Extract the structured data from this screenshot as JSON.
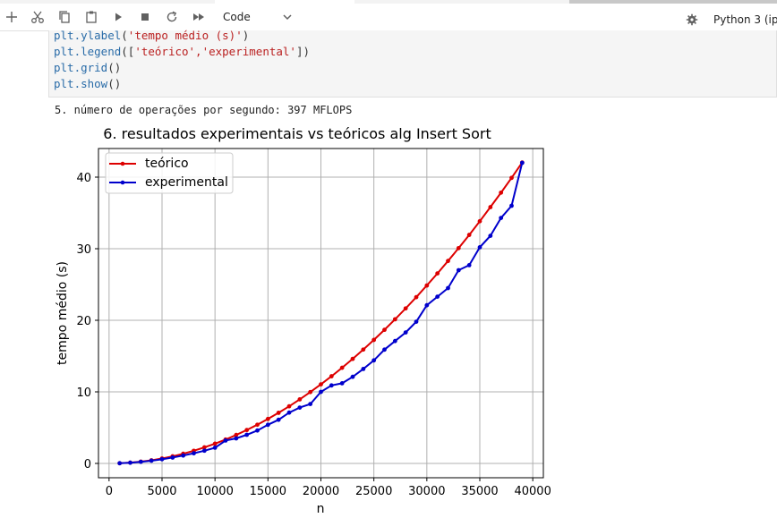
{
  "toolbar": {
    "icons": [
      "add-icon",
      "cut-icon",
      "copy-icon",
      "paste-icon",
      "run-icon",
      "stop-icon",
      "restart-icon",
      "fast-forward-icon"
    ],
    "cell_type": "Code",
    "kernel": "Python 3 (ip"
  },
  "code_cell": {
    "lines": [
      {
        "fn": "plt.ylabel",
        "open": "(",
        "str": "'tempo médio (s)'",
        "close": ")"
      },
      {
        "fn": "plt.legend",
        "open": "([",
        "str": "'teórico','experimental'",
        "close": "])"
      },
      {
        "fn": "plt.grid",
        "open": "()",
        "str": "",
        "close": ""
      },
      {
        "fn": "plt.show",
        "open": "()",
        "str": "",
        "close": ""
      }
    ]
  },
  "output": {
    "text": "5. número de operações por segundo: 397 MFLOPS"
  },
  "colors": {
    "teorico": "#dd0000",
    "experimental": "#0000cc",
    "grid": "#b0b0b0"
  },
  "chart_data": {
    "type": "line",
    "title": "6. resultados experimentais vs teóricos alg Insert Sort",
    "xlabel": "n",
    "ylabel": "tempo médio (s)",
    "xlim": [
      -1000,
      41000
    ],
    "ylim": [
      -2,
      44
    ],
    "xticks": [
      0,
      5000,
      10000,
      15000,
      20000,
      25000,
      30000,
      35000,
      40000
    ],
    "yticks": [
      0,
      10,
      20,
      30,
      40
    ],
    "grid": true,
    "legend_position": "top-left",
    "x": [
      1000,
      2000,
      3000,
      4000,
      5000,
      6000,
      7000,
      8000,
      9000,
      10000,
      11000,
      12000,
      13000,
      14000,
      15000,
      16000,
      17000,
      18000,
      19000,
      20000,
      21000,
      22000,
      23000,
      24000,
      25000,
      26000,
      27000,
      28000,
      29000,
      30000,
      31000,
      32000,
      33000,
      34000,
      35000,
      36000,
      37000,
      38000,
      39000
    ],
    "series": [
      {
        "name": "teórico",
        "color": "#dd0000",
        "values": [
          0.03,
          0.11,
          0.25,
          0.44,
          0.69,
          0.99,
          1.35,
          1.77,
          2.24,
          2.76,
          3.34,
          3.98,
          4.67,
          5.41,
          6.21,
          7.07,
          7.98,
          8.95,
          9.97,
          11.05,
          12.18,
          13.37,
          14.61,
          15.91,
          17.26,
          18.67,
          20.14,
          21.66,
          23.23,
          24.86,
          26.55,
          28.29,
          30.08,
          31.93,
          33.84,
          35.81,
          37.83,
          39.9,
          42.04
        ]
      },
      {
        "name": "experimental",
        "color": "#0000cc",
        "values": [
          0.03,
          0.1,
          0.22,
          0.38,
          0.58,
          0.82,
          1.1,
          1.42,
          1.78,
          2.2,
          3.2,
          3.5,
          4.0,
          4.6,
          5.4,
          6.1,
          7.1,
          7.8,
          8.3,
          10.0,
          10.9,
          11.2,
          12.1,
          13.2,
          14.4,
          15.9,
          17.1,
          18.3,
          19.8,
          22.1,
          23.3,
          24.5,
          27.0,
          27.7,
          30.2,
          31.8,
          34.3,
          36.0,
          42.0
        ]
      }
    ]
  }
}
